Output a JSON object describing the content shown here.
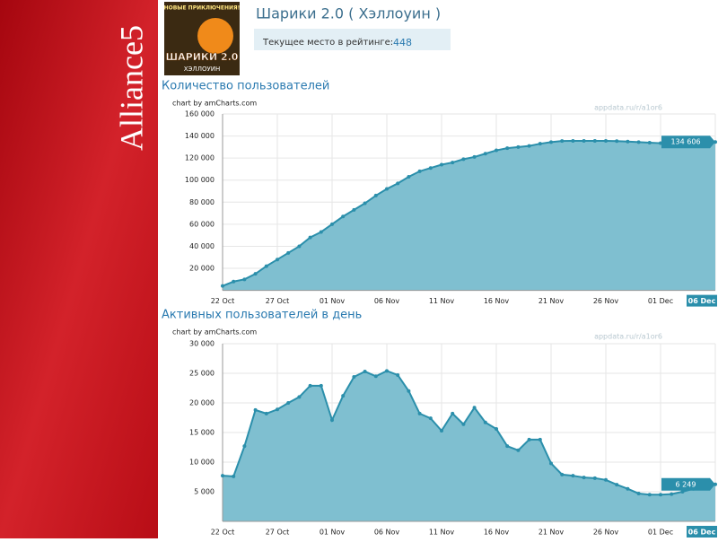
{
  "brand": "Alliance5",
  "app": {
    "icon_top": "НОВЫЕ ПРИКЛЮЧЕНИЯ!",
    "icon_title": "ШАРИКИ 2.0",
    "icon_sub": "ХЭЛЛОУИН",
    "title": "Шарики 2.0 ( Хэллоуин )",
    "rank_label": "Текущее место в рейтинге:",
    "rank": 448
  },
  "chart_data": [
    {
      "type": "area",
      "title": "Количество пользователей",
      "credit": "chart by amCharts.com",
      "watermark": "appdata.ru/r/a1or6",
      "color": "#2b8fab",
      "fill": "#7fbfd0",
      "grid": true,
      "categories": [
        "22 Oct",
        null,
        null,
        null,
        null,
        "27 Oct",
        null,
        null,
        null,
        null,
        "01 Nov",
        null,
        null,
        null,
        null,
        "06 Nov",
        null,
        null,
        null,
        null,
        "11 Nov",
        null,
        null,
        null,
        null,
        "16 Nov",
        null,
        null,
        null,
        null,
        "21 Nov",
        null,
        null,
        null,
        null,
        "26 Nov",
        null,
        null,
        null,
        null,
        "01 Dec",
        null,
        null,
        null,
        null,
        "06 Dec"
      ],
      "values": [
        4000,
        8000,
        10000,
        15000,
        22000,
        28000,
        34000,
        40000,
        48000,
        53000,
        60000,
        67000,
        73000,
        79000,
        86000,
        92000,
        97000,
        103000,
        108000,
        111000,
        114000,
        116000,
        119000,
        121000,
        124000,
        127000,
        129000,
        130000,
        131000,
        133000,
        134500,
        135500,
        135600,
        135600,
        135600,
        135600,
        135400,
        135000,
        134500,
        134000,
        133500,
        133000,
        132800,
        133000,
        134000,
        134606
      ],
      "value_labels": [
        null,
        null,
        null,
        null,
        null,
        null,
        null,
        null,
        null,
        null,
        null,
        null,
        null,
        null,
        null,
        null,
        null,
        null,
        null,
        null,
        null,
        null,
        null,
        null,
        null,
        null,
        null,
        null,
        null,
        null,
        null,
        null,
        null,
        null,
        null,
        null,
        null,
        null,
        null,
        null,
        null,
        null,
        null,
        null,
        null,
        "134 606"
      ],
      "ylim": [
        0,
        160000
      ],
      "yticks": [
        {
          "value": 20000,
          "label": "20 000"
        },
        {
          "value": 40000,
          "label": "40 000"
        },
        {
          "value": 60000,
          "label": "60 000"
        },
        {
          "value": 80000,
          "label": "80 000"
        },
        {
          "value": 100000,
          "label": "100 000"
        },
        {
          "value": 120000,
          "label": "120 000"
        },
        {
          "value": 140000,
          "label": "140 000"
        },
        {
          "value": 160000,
          "label": "160 000"
        }
      ]
    },
    {
      "type": "area",
      "title": "Активных пользователей в день",
      "credit": "chart by amCharts.com",
      "watermark": "appdata.ru/r/a1or6",
      "color": "#2b8fab",
      "fill": "#7fbfd0",
      "grid": true,
      "categories": [
        "22 Oct",
        null,
        null,
        null,
        null,
        "27 Oct",
        null,
        null,
        null,
        null,
        "01 Nov",
        null,
        null,
        null,
        null,
        "06 Nov",
        null,
        null,
        null,
        null,
        "11 Nov",
        null,
        null,
        null,
        null,
        "16 Nov",
        null,
        null,
        null,
        null,
        "21 Nov",
        null,
        null,
        null,
        null,
        "26 Nov",
        null,
        null,
        null,
        null,
        "01 Dec",
        null,
        null,
        null,
        null,
        "06 Dec"
      ],
      "values": [
        7700,
        7600,
        12700,
        18800,
        18200,
        18900,
        20000,
        21000,
        22900,
        22900,
        17100,
        21200,
        24400,
        25300,
        24500,
        25400,
        24700,
        22000,
        18200,
        17400,
        15300,
        18200,
        16400,
        19200,
        16700,
        15600,
        12700,
        12000,
        13800,
        13800,
        9800,
        7900,
        7700,
        7400,
        7300,
        7000,
        6200,
        5500,
        4700,
        4500,
        4500,
        4600,
        5000,
        5500,
        5900,
        6249
      ],
      "value_labels": [
        null,
        null,
        null,
        null,
        null,
        null,
        null,
        null,
        null,
        null,
        null,
        null,
        null,
        null,
        null,
        null,
        null,
        null,
        null,
        null,
        null,
        null,
        null,
        null,
        null,
        null,
        null,
        null,
        null,
        null,
        null,
        null,
        null,
        null,
        null,
        null,
        null,
        null,
        null,
        null,
        null,
        null,
        null,
        null,
        null,
        "6 249"
      ],
      "ylim": [
        0,
        30000
      ],
      "yticks": [
        {
          "value": 5000,
          "label": "5 000"
        },
        {
          "value": 10000,
          "label": "10 000"
        },
        {
          "value": 15000,
          "label": "15 000"
        },
        {
          "value": 20000,
          "label": "20 000"
        },
        {
          "value": 25000,
          "label": "25 000"
        },
        {
          "value": 30000,
          "label": "30 000"
        }
      ]
    }
  ]
}
